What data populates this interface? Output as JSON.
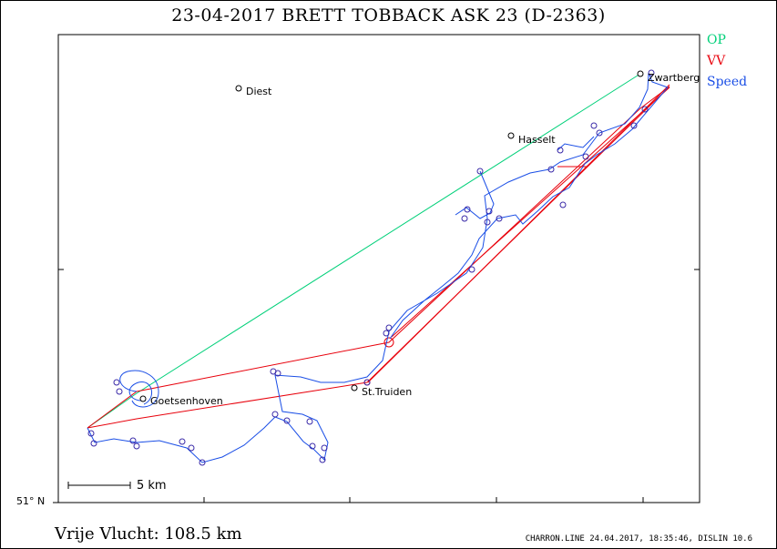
{
  "title": "23-04-2017   BRETT TOBBACK   ASK 23 (D-2363)",
  "legend": {
    "op": "OP",
    "vv": "VV",
    "speed": "Speed"
  },
  "colors": {
    "op": "#00d079",
    "vv": "#e8000b",
    "speed": "#1a4ee6",
    "track": "#3a2aa8"
  },
  "towns": [
    {
      "name": "Diest"
    },
    {
      "name": "Hasselt"
    },
    {
      "name": "Zwartberg"
    },
    {
      "name": "St.Truiden"
    },
    {
      "name": "Goetsenhoven"
    }
  ],
  "scale_label": "5 km",
  "latitude_label": "51° N",
  "distance": "Vrije Vlucht:  108.5 km",
  "footer": "CHARRON.LINE 24.04.2017, 18:35:46, DISLIN 10.6"
}
